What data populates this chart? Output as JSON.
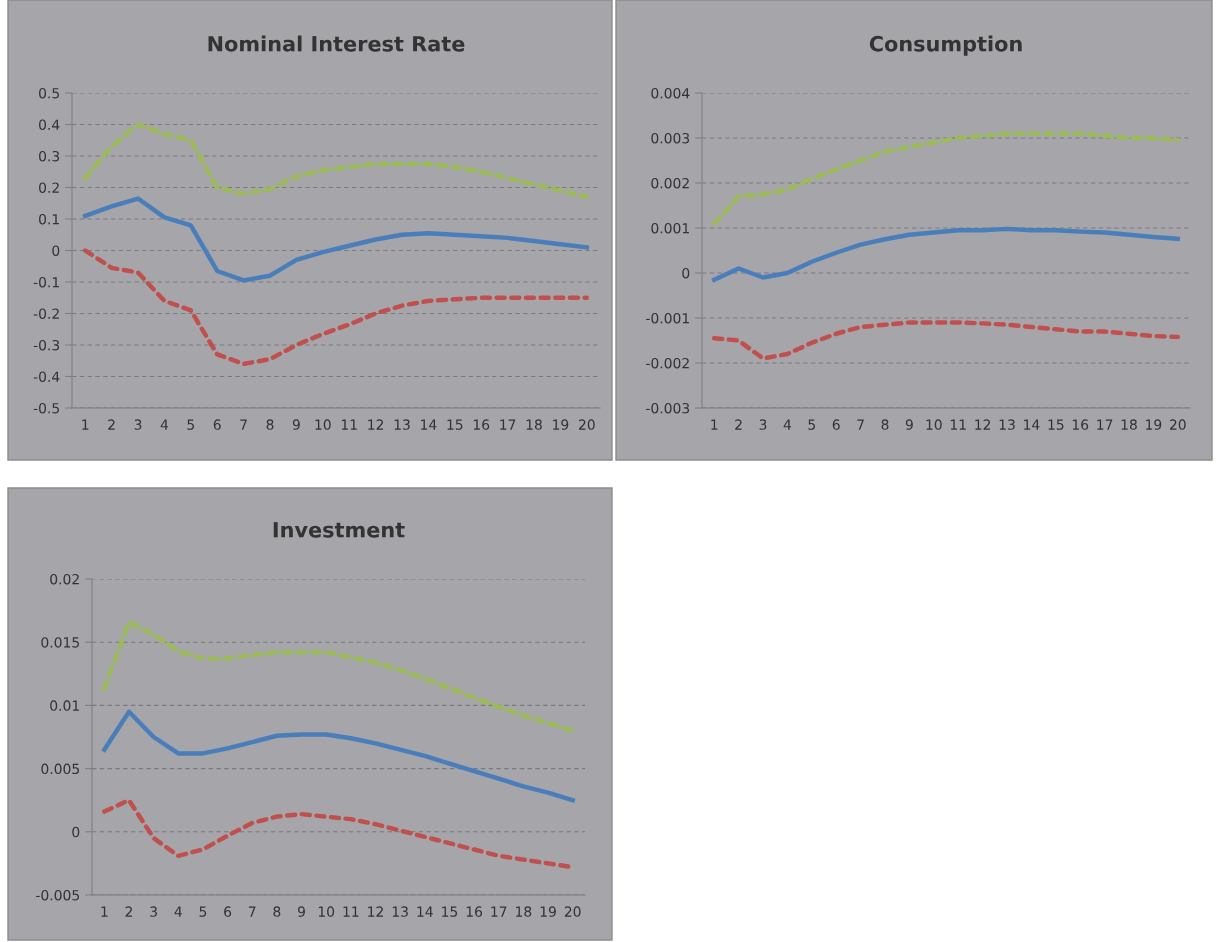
{
  "chart_data": [
    {
      "type": "line",
      "title": "Nominal Interest Rate",
      "categories": [
        "1",
        "2",
        "3",
        "4",
        "5",
        "6",
        "7",
        "8",
        "9",
        "10",
        "11",
        "12",
        "13",
        "14",
        "15",
        "16",
        "17",
        "18",
        "19",
        "20"
      ],
      "ylim": [
        -0.5,
        0.5
      ],
      "yticks": [
        -0.5,
        -0.4,
        -0.3,
        -0.2,
        -0.1,
        0,
        0.1,
        0.2,
        0.3,
        0.4,
        0.5
      ],
      "grid": "y",
      "legend": false,
      "marker": "none",
      "series": [
        {
          "color": "#4a7ebb",
          "line_style": "solid",
          "values": [
            0.11,
            0.14,
            0.165,
            0.105,
            0.08,
            -0.065,
            -0.095,
            -0.08,
            -0.03,
            -0.005,
            0.015,
            0.035,
            0.05,
            0.055,
            0.05,
            0.045,
            0.04,
            0.03,
            0.02,
            0.01
          ]
        },
        {
          "color": "#9bbb59",
          "line_style": "dashed",
          "values": [
            0.23,
            0.33,
            0.4,
            0.37,
            0.35,
            0.2,
            0.18,
            0.195,
            0.235,
            0.255,
            0.265,
            0.275,
            0.275,
            0.275,
            0.265,
            0.25,
            0.23,
            0.21,
            0.19,
            0.17
          ]
        },
        {
          "color": "#c0504d",
          "line_style": "dashed",
          "values": [
            0,
            -0.055,
            -0.07,
            -0.16,
            -0.19,
            -0.33,
            -0.36,
            -0.345,
            -0.3,
            -0.265,
            -0.235,
            -0.2,
            -0.175,
            -0.16,
            -0.155,
            -0.15,
            -0.15,
            -0.15,
            -0.15,
            -0.15
          ]
        }
      ]
    },
    {
      "type": "line",
      "title": "Consumption",
      "categories": [
        "1",
        "2",
        "3",
        "4",
        "5",
        "6",
        "7",
        "8",
        "9",
        "10",
        "11",
        "12",
        "13",
        "14",
        "15",
        "16",
        "17",
        "18",
        "19",
        "20"
      ],
      "ylim": [
        -0.003,
        0.004
      ],
      "yticks": [
        -0.003,
        -0.002,
        -0.001,
        0,
        0.001,
        0.002,
        0.003,
        0.004
      ],
      "grid": "y",
      "legend": false,
      "marker": "none",
      "series": [
        {
          "color": "#4a7ebb",
          "line_style": "solid",
          "values": [
            -0.00015,
            0.0001,
            -0.0001,
            0,
            0.00025,
            0.00045,
            0.00063,
            0.00075,
            0.00085,
            0.0009,
            0.00095,
            0.00095,
            0.00098,
            0.00095,
            0.00095,
            0.00092,
            0.0009,
            0.00085,
            0.0008,
            0.00076
          ]
        },
        {
          "color": "#9bbb59",
          "line_style": "dashed",
          "values": [
            0.0011,
            0.0017,
            0.00175,
            0.00185,
            0.0021,
            0.0023,
            0.0025,
            0.0027,
            0.0028,
            0.0029,
            0.003,
            0.00305,
            0.0031,
            0.0031,
            0.0031,
            0.0031,
            0.00305,
            0.003,
            0.003,
            0.00295
          ]
        },
        {
          "color": "#c0504d",
          "line_style": "dashed",
          "values": [
            -0.00145,
            -0.0015,
            -0.0019,
            -0.0018,
            -0.00155,
            -0.00135,
            -0.0012,
            -0.00115,
            -0.0011,
            -0.0011,
            -0.0011,
            -0.00112,
            -0.00115,
            -0.0012,
            -0.00125,
            -0.0013,
            -0.0013,
            -0.00135,
            -0.0014,
            -0.00142
          ]
        }
      ]
    },
    {
      "type": "line",
      "title": "Investment",
      "categories": [
        "1",
        "2",
        "3",
        "4",
        "5",
        "6",
        "7",
        "8",
        "9",
        "10",
        "11",
        "12",
        "13",
        "14",
        "15",
        "16",
        "17",
        "18",
        "19",
        "20"
      ],
      "ylim": [
        -0.005,
        0.02
      ],
      "yticks": [
        -0.005,
        0,
        0.005,
        0.01,
        0.015,
        0.02
      ],
      "grid": "y",
      "legend": false,
      "marker": "none",
      "series": [
        {
          "color": "#4a7ebb",
          "line_style": "solid",
          "values": [
            0.0065,
            0.0095,
            0.0075,
            0.0062,
            0.0062,
            0.0066,
            0.0071,
            0.0076,
            0.0077,
            0.0077,
            0.0074,
            0.007,
            0.0065,
            0.006,
            0.0054,
            0.0048,
            0.0042,
            0.0036,
            0.0031,
            0.0025
          ]
        },
        {
          "color": "#9bbb59",
          "line_style": "dashed",
          "values": [
            0.0113,
            0.0166,
            0.0156,
            0.0143,
            0.0137,
            0.0137,
            0.014,
            0.0142,
            0.0142,
            0.0142,
            0.0138,
            0.0134,
            0.0128,
            0.0121,
            0.0114,
            0.0106,
            0.0099,
            0.0092,
            0.0086,
            0.008
          ]
        },
        {
          "color": "#c0504d",
          "line_style": "dashed",
          "values": [
            0.0016,
            0.0025,
            -0.0005,
            -0.0019,
            -0.0014,
            -0.0003,
            0.0007,
            0.0012,
            0.0014,
            0.0012,
            0.001,
            0.0006,
            0.0001,
            -0.0004,
            -0.0009,
            -0.0014,
            -0.0019,
            -0.0022,
            -0.0025,
            -0.0028
          ]
        }
      ]
    }
  ]
}
